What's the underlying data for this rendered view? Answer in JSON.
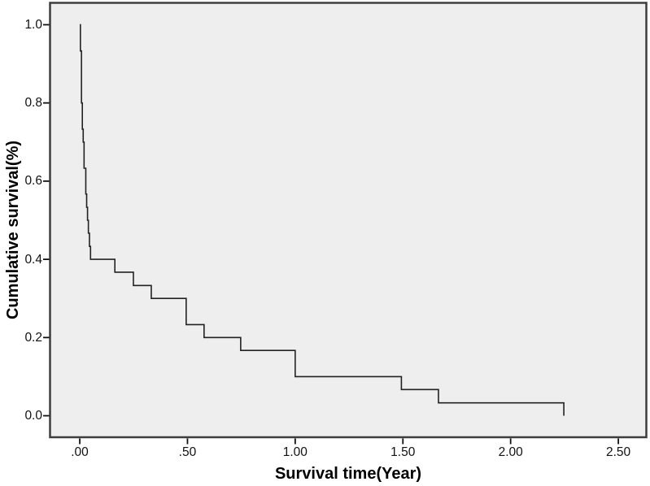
{
  "figure": {
    "background": "#ffffff",
    "plot_background": "#eeeeee",
    "frame_color": "#3d3d3d",
    "line_color": "#222222",
    "tick_color": "#111111",
    "text_color": "#000000"
  },
  "chart_data": {
    "type": "line",
    "subtype": "kaplan-meier-step",
    "title": "",
    "xlabel": "Survival time(Year)",
    "ylabel": "Cumulative survival(%)",
    "xlim": [
      -0.138,
      2.63
    ],
    "ylim": [
      -0.055,
      1.056
    ],
    "grid": false,
    "legend_position": "none",
    "x_ticks": [
      {
        "value": 0.0,
        "label": ".00"
      },
      {
        "value": 0.5,
        "label": ".50"
      },
      {
        "value": 1.0,
        "label": "1.00"
      },
      {
        "value": 1.5,
        "label": "1.50"
      },
      {
        "value": 2.0,
        "label": "2.00"
      },
      {
        "value": 2.5,
        "label": "2.50"
      }
    ],
    "y_ticks": [
      {
        "value": 0.0,
        "label": "0.0"
      },
      {
        "value": 0.2,
        "label": "0.2"
      },
      {
        "value": 0.4,
        "label": "0.4"
      },
      {
        "value": 0.6,
        "label": "0.6"
      },
      {
        "value": 0.8,
        "label": "0.8"
      },
      {
        "value": 1.0,
        "label": "1.0"
      }
    ],
    "series": [
      {
        "name": "Cumulative survival",
        "color": "#222222",
        "step": true,
        "points": [
          [
            0.0,
            1.0
          ],
          [
            0.003,
            0.933
          ],
          [
            0.008,
            0.8
          ],
          [
            0.012,
            0.733
          ],
          [
            0.016,
            0.7
          ],
          [
            0.02,
            0.633
          ],
          [
            0.028,
            0.567
          ],
          [
            0.032,
            0.533
          ],
          [
            0.036,
            0.5
          ],
          [
            0.04,
            0.467
          ],
          [
            0.045,
            0.433
          ],
          [
            0.05,
            0.4
          ],
          [
            0.163,
            0.367
          ],
          [
            0.249,
            0.333
          ],
          [
            0.332,
            0.3
          ],
          [
            0.494,
            0.233
          ],
          [
            0.577,
            0.2
          ],
          [
            0.747,
            0.167
          ],
          [
            1.0,
            0.1
          ],
          [
            1.493,
            0.067
          ],
          [
            1.665,
            0.033
          ],
          [
            2.247,
            0.0
          ]
        ]
      }
    ]
  }
}
